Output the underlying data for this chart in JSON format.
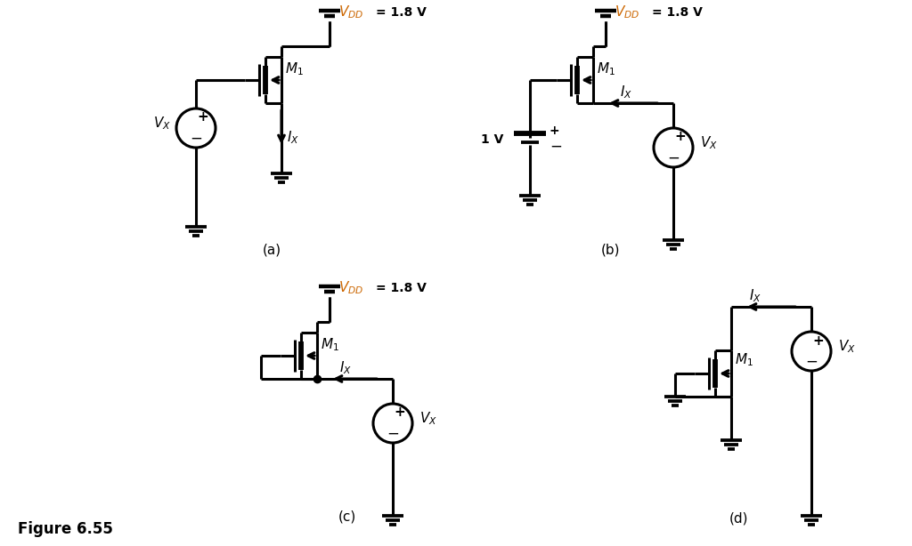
{
  "background_color": "#ffffff",
  "text_color": "#000000",
  "orange_color": "#cc6600",
  "lw": 2.2,
  "fig_caption": "Figure 6.55",
  "vdd_label": "= 1.8 V",
  "one_v_label": "1 V",
  "circuits": [
    "(a)",
    "(b)",
    "(c)",
    "(d)"
  ]
}
